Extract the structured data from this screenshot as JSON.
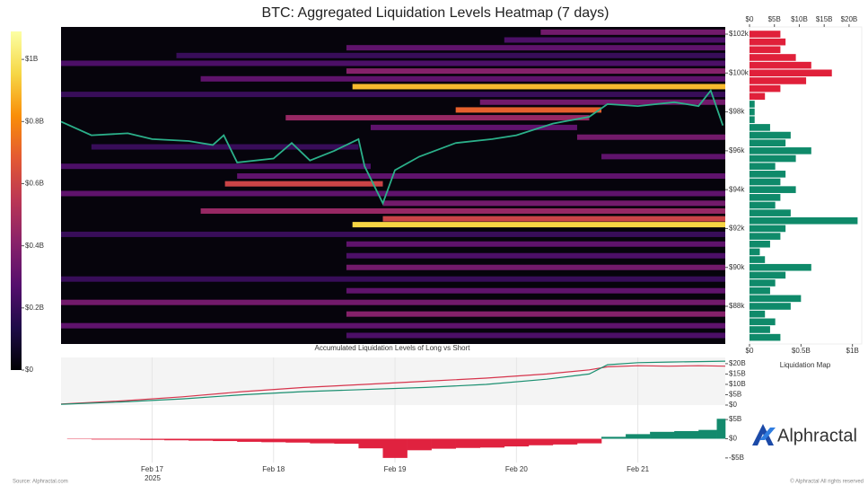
{
  "chart_data": [
    {
      "type": "heatmap",
      "title": "BTC: Aggregated Liquidation Levels Heatmap (7 days)",
      "xlim": [
        16.25,
        21.72
      ],
      "xticks": [
        {
          "value": 17,
          "label": "Feb 17"
        },
        {
          "value": 18,
          "label": "Feb 18"
        },
        {
          "value": 19,
          "label": "Feb 19"
        },
        {
          "value": 20,
          "label": "Feb 20"
        },
        {
          "value": 21,
          "label": "Feb 21"
        }
      ],
      "year_label": "2025",
      "ylim": [
        86060,
        102370
      ],
      "yticks": [
        {
          "value": 88000,
          "label": "$88k"
        },
        {
          "value": 90000,
          "label": "$90k"
        },
        {
          "value": 92000,
          "label": "$92k"
        },
        {
          "value": 94000,
          "label": "$94k"
        },
        {
          "value": 96000,
          "label": "$96k"
        },
        {
          "value": 98000,
          "label": "$98k"
        },
        {
          "value": 100000,
          "label": "$100k"
        },
        {
          "value": 102000,
          "label": "$102k"
        }
      ],
      "colorbar": {
        "lim": [
          0,
          1.09
        ],
        "ticks": [
          {
            "value": 0,
            "label": "$0"
          },
          {
            "value": 0.2,
            "label": "$0.2B"
          },
          {
            "value": 0.4,
            "label": "$0.4B"
          },
          {
            "value": 0.6,
            "label": "$0.6B"
          },
          {
            "value": 0.8,
            "label": "$0.8B"
          },
          {
            "value": 1,
            "label": "$1B"
          }
        ],
        "colormap": [
          "#000004",
          "#1f0c48",
          "#550f6d",
          "#88226a",
          "#ba3655",
          "#e35933",
          "#f98e09",
          "#f6d746",
          "#fcffa4"
        ]
      },
      "bands": {
        "price": [
          102100,
          101700,
          101300,
          100900,
          100500,
          100100,
          99700,
          99300,
          98900,
          98500,
          98100,
          97700,
          97200,
          96700,
          96200,
          95700,
          95200,
          94700,
          94300,
          93800,
          93300,
          92900,
          92500,
          92200,
          91700,
          91200,
          90600,
          90000,
          89400,
          88800,
          88200,
          87600,
          87000,
          86500
        ],
        "start": [
          20.2,
          19.9,
          18.6,
          17.2,
          16.25,
          18.6,
          17.4,
          18.65,
          16.25,
          19.7,
          19.5,
          18.1,
          18.8,
          20.5,
          16.5,
          20.7,
          16.25,
          17.7,
          17.6,
          16.25,
          18.9,
          17.4,
          18.9,
          18.65,
          16.25,
          18.6,
          18.6,
          18.6,
          16.25,
          18.6,
          16.25,
          18.6,
          16.25,
          18.6
        ],
        "end": [
          21.72,
          21.72,
          21.72,
          21.72,
          21.72,
          21.72,
          21.72,
          21.72,
          21.72,
          21.72,
          20.7,
          20.6,
          20.5,
          21.72,
          18.7,
          21.72,
          18.8,
          21.72,
          18.9,
          21.72,
          21.72,
          21.72,
          21.72,
          21.72,
          21.72,
          21.72,
          21.72,
          21.72,
          21.72,
          21.72,
          21.72,
          21.72,
          21.72,
          21.72
        ],
        "level": [
          0.35,
          0.25,
          0.3,
          0.2,
          0.25,
          0.4,
          0.3,
          0.9,
          0.2,
          0.35,
          0.7,
          0.45,
          0.3,
          0.35,
          0.2,
          0.3,
          0.25,
          0.3,
          0.6,
          0.3,
          0.35,
          0.45,
          0.6,
          0.95,
          0.2,
          0.3,
          0.25,
          0.35,
          0.2,
          0.3,
          0.35,
          0.4,
          0.3,
          0.25
        ]
      },
      "price": {
        "color": "#2bb08a",
        "x": [
          16.25,
          16.5,
          16.8,
          17.0,
          17.3,
          17.5,
          17.59,
          17.7,
          18.0,
          18.15,
          18.3,
          18.5,
          18.7,
          18.75,
          18.9,
          19.0,
          19.2,
          19.5,
          19.8,
          20.0,
          20.3,
          20.6,
          20.75,
          21.0,
          21.3,
          21.5,
          21.6,
          21.7
        ],
        "values": [
          97500,
          96800,
          96900,
          96600,
          96500,
          96300,
          96800,
          95400,
          95600,
          96400,
          95500,
          96000,
          96600,
          95200,
          93300,
          95000,
          95700,
          96400,
          96600,
          96800,
          97400,
          97750,
          98400,
          98300,
          98500,
          98300,
          99100,
          97300
        ]
      }
    },
    {
      "type": "hbar",
      "xlabel": "Liquidation Map",
      "xlim": [
        0,
        1.09
      ],
      "xticks": [
        {
          "value": 0,
          "label": "$0"
        },
        {
          "value": 0.5,
          "label": "$0.5B"
        },
        {
          "value": 1,
          "label": "$1B"
        }
      ],
      "x2lim": [
        0,
        22
      ],
      "x2ticks": [
        {
          "value": 0,
          "label": "$0"
        },
        {
          "value": 5,
          "label": "$5B"
        },
        {
          "value": 10,
          "label": "$10B"
        },
        {
          "value": 15,
          "label": "$15B"
        },
        {
          "value": 20,
          "label": "$20B"
        }
      ],
      "ylim": [
        86060,
        102370
      ],
      "y": [
        86400,
        86800,
        87200,
        87600,
        88000,
        88400,
        88800,
        89200,
        89600,
        90000,
        90400,
        90800,
        91200,
        91600,
        92000,
        92400,
        92800,
        93200,
        93600,
        94000,
        94400,
        94800,
        95200,
        95600,
        96000,
        96400,
        96800,
        97200,
        97600,
        98000,
        98400,
        98800,
        99200,
        99600,
        100000,
        100400,
        100800,
        101200,
        101600,
        102000
      ],
      "series": [
        {
          "color": "#0f8a6a",
          "values": [
            0.3,
            0.2,
            0.25,
            0.15,
            0.4,
            0.5,
            0.2,
            0.25,
            0.35,
            0.6,
            0.15,
            0.1,
            0.2,
            0.3,
            0.35,
            1.05,
            0.4,
            0.25,
            0.3,
            0.45,
            0.3,
            0.35,
            0.25,
            0.45,
            0.6,
            0.35,
            0.4,
            0.2,
            0.05,
            0.05,
            0.05,
            null,
            null,
            null,
            null,
            null,
            null,
            null,
            null,
            null
          ]
        },
        {
          "color": "#e0203a",
          "values": [
            null,
            null,
            null,
            null,
            null,
            null,
            null,
            null,
            null,
            null,
            null,
            null,
            null,
            null,
            null,
            null,
            null,
            null,
            null,
            null,
            null,
            null,
            null,
            null,
            null,
            null,
            null,
            null,
            null,
            null,
            null,
            0.15,
            0.3,
            0.55,
            0.8,
            0.6,
            0.45,
            0.3,
            0.35,
            0.3
          ]
        }
      ]
    },
    {
      "type": "line",
      "title": "Accumulated Liquidation Levels of Long vs Short",
      "ylim": [
        0,
        23
      ],
      "yticks": [
        {
          "value": 0,
          "label": "$0"
        },
        {
          "value": 5,
          "label": "$5B"
        },
        {
          "value": 10,
          "label": "$10B"
        },
        {
          "value": 15,
          "label": "$15B"
        },
        {
          "value": 20,
          "label": "$20B"
        }
      ],
      "x": [
        16.25,
        16.75,
        17.25,
        17.75,
        18.25,
        18.75,
        19.25,
        19.75,
        20.25,
        20.6,
        20.75,
        21.0,
        21.25,
        21.5,
        21.72
      ],
      "series": [
        {
          "color": "#d6344c",
          "values": [
            0.5,
            2,
            4,
            6.5,
            8.5,
            10,
            11.5,
            13,
            15,
            17,
            18.5,
            19,
            18.8,
            19,
            18.8
          ]
        },
        {
          "color": "#1a8f70",
          "values": [
            0.4,
            1.5,
            3,
            5,
            6.5,
            7.5,
            8.5,
            10,
            12.5,
            15,
            19.5,
            20.5,
            20.8,
            21,
            21.2
          ]
        }
      ]
    },
    {
      "type": "delta",
      "ylim": [
        -6.2,
        6.2
      ],
      "yticks": [
        {
          "value": 5,
          "label": "$5B"
        },
        {
          "value": 0,
          "label": "$0"
        },
        {
          "value": -5,
          "label": "-$5B"
        }
      ],
      "positive_color": "#138a6d",
      "negative_color": "#e0223f",
      "x": [
        16.3,
        16.5,
        16.7,
        16.9,
        17.1,
        17.3,
        17.5,
        17.7,
        17.9,
        18.1,
        18.3,
        18.5,
        18.7,
        18.9,
        19.1,
        19.3,
        19.5,
        19.7,
        19.9,
        20.1,
        20.3,
        20.5,
        20.7,
        20.9,
        21.1,
        21.3,
        21.5,
        21.65
      ],
      "values": [
        -0.1,
        -0.2,
        -0.2,
        -0.3,
        -0.4,
        -0.5,
        -0.6,
        -0.8,
        -0.9,
        -1.0,
        -1.2,
        -1.3,
        -2.5,
        -5.0,
        -3.0,
        -2.6,
        -2.4,
        -2.3,
        -2.0,
        -1.7,
        -1.5,
        -1.2,
        0.5,
        1.2,
        1.8,
        2.0,
        2.3,
        5.2
      ]
    }
  ],
  "footer": {
    "source": "Source: Alphractal.com",
    "rights": "© Alphractal All rights reserved",
    "brand": "Alphractal"
  }
}
